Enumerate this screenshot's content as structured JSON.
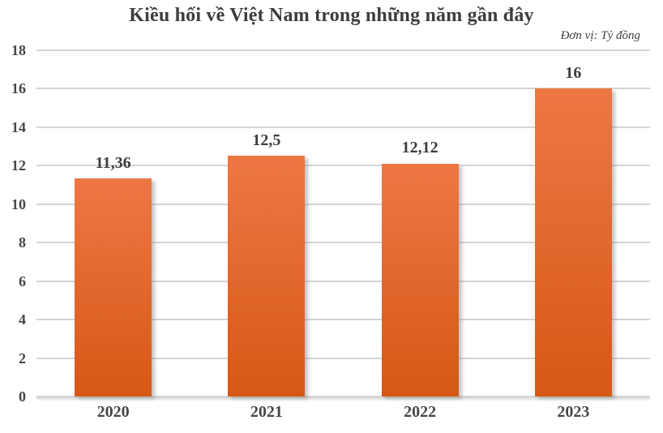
{
  "chart_data": {
    "type": "bar",
    "title": "Kiều hối về Việt Nam trong những năm gần đây",
    "unit_note": "Đơn vị: Tỷ đồng",
    "categories": [
      "2020",
      "2021",
      "2022",
      "2023"
    ],
    "values": [
      11.36,
      12.5,
      12.12,
      16
    ],
    "value_labels": [
      "11,36",
      "12,5",
      "12,12",
      "16"
    ],
    "xlabel": "",
    "ylabel": "",
    "ylim": [
      0,
      18
    ],
    "ytick_step": 2,
    "ytick_labels": [
      "0",
      "2",
      "4",
      "6",
      "8",
      "10",
      "12",
      "14",
      "16",
      "18"
    ],
    "grid": true,
    "legend": "none",
    "colors": {
      "bar_gradient_top": "#EE7744",
      "bar_gradient_bottom": "#D65816",
      "gridline": "#d4d4d4",
      "title_text": "#3d3d3d",
      "axis_text": "#474747"
    }
  }
}
